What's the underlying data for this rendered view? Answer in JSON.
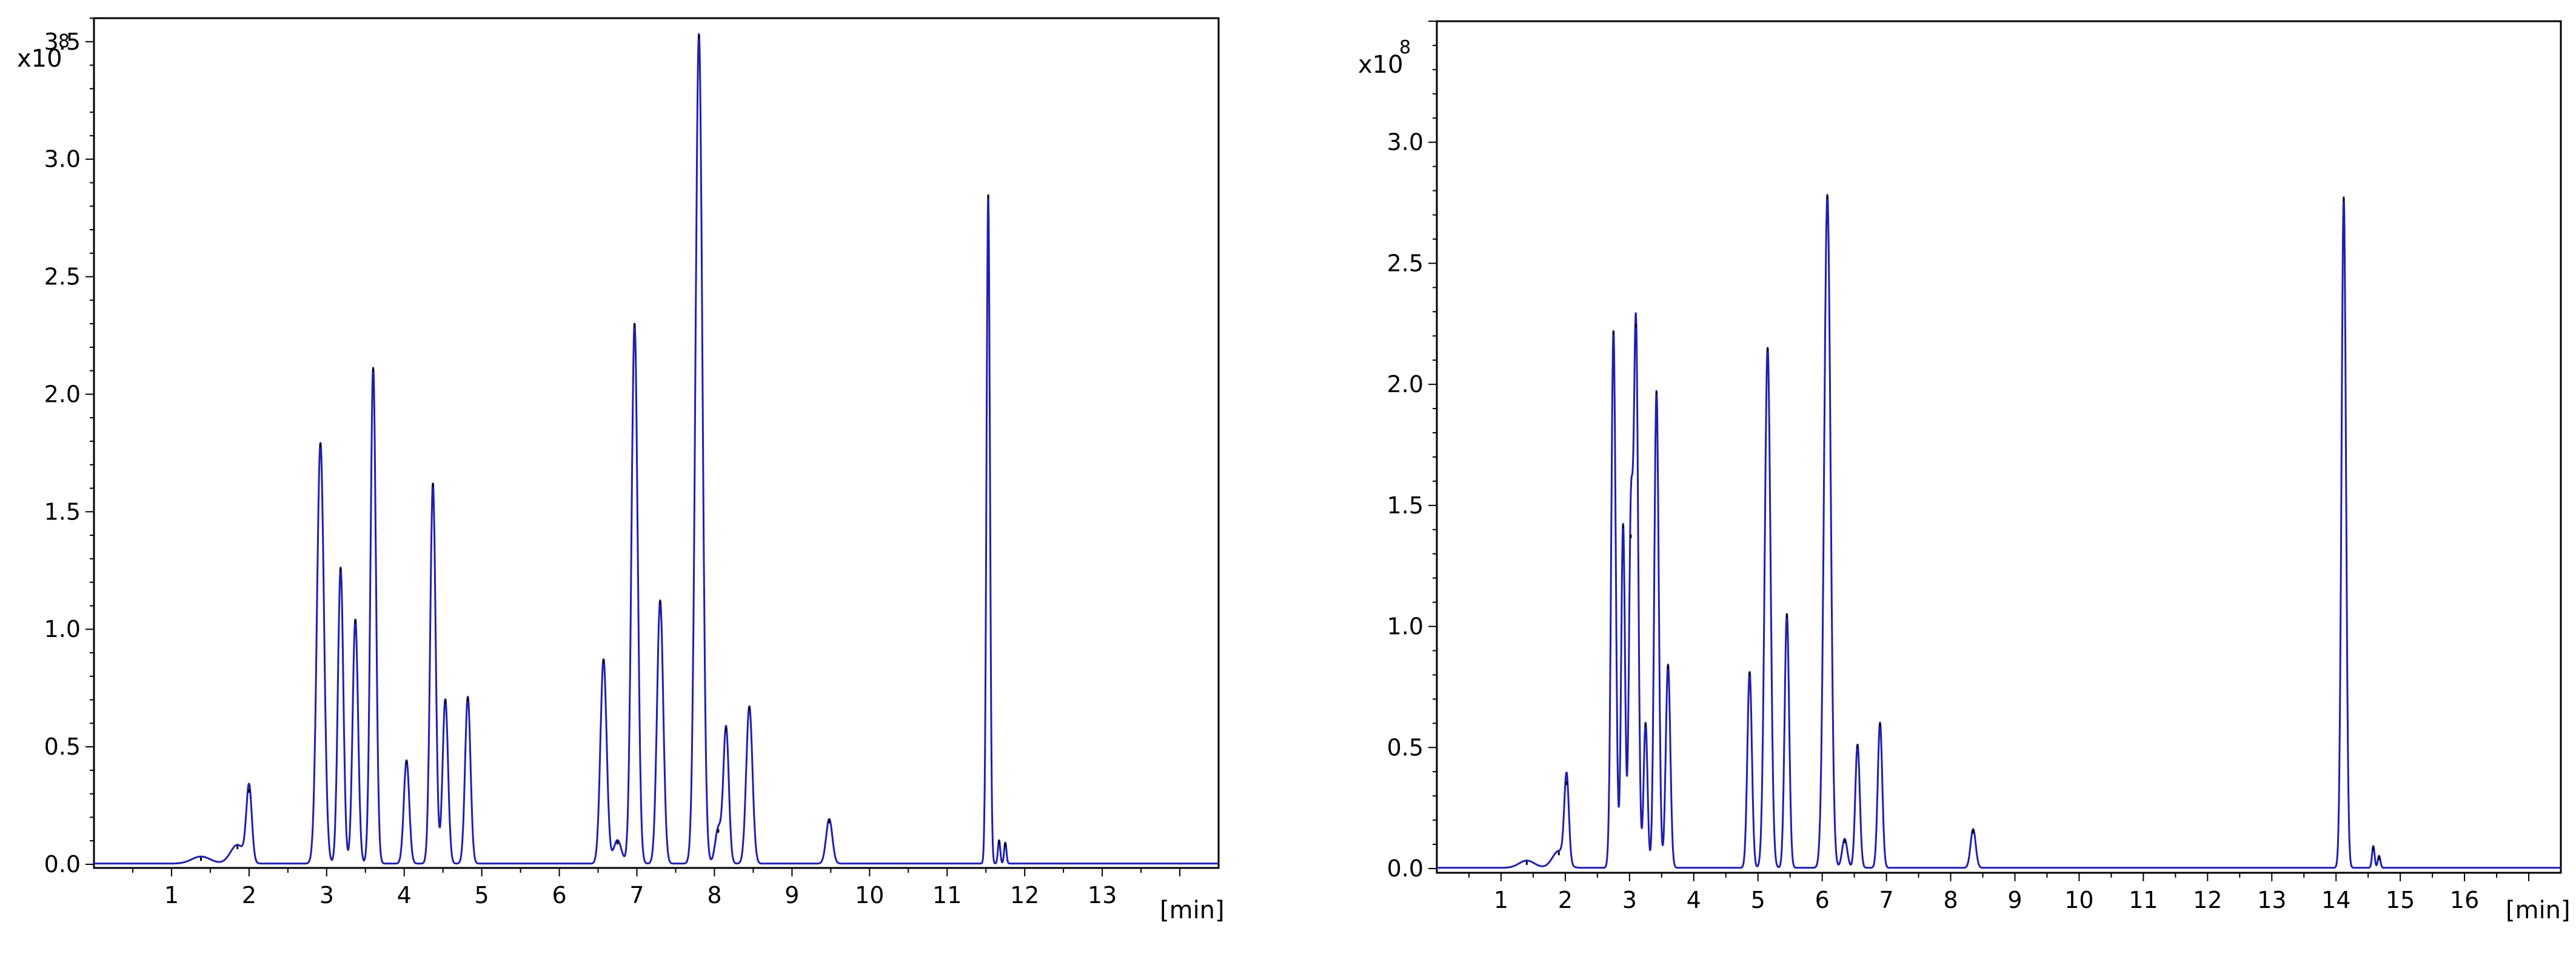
{
  "chart_data": [
    {
      "type": "line",
      "y_multiplier_label": "x10",
      "y_multiplier_exponent": "8",
      "x_unit_label": "[min]",
      "xlim": [
        0,
        14.5
      ],
      "ylim": [
        0,
        3.6
      ],
      "x_ticks": [
        "1",
        "2",
        "3",
        "4",
        "5",
        "6",
        "7",
        "8",
        "9",
        "10",
        "11",
        "12",
        "13"
      ],
      "y_ticks": [
        "0.0",
        "0.5",
        "1.0",
        "1.5",
        "2.0",
        "2.5",
        "3.0",
        "3.5"
      ],
      "line_color": "#1f1fb0",
      "grid": false,
      "series": [
        {
          "peaks": [
            {
              "x": 1.38,
              "h": 0.03,
              "w": 0.12
            },
            {
              "x": 1.85,
              "h": 0.08,
              "w": 0.09
            },
            {
              "x": 2.0,
              "h": 0.32,
              "w": 0.035
            },
            {
              "x": 2.92,
              "h": 1.79,
              "w": 0.045
            },
            {
              "x": 3.18,
              "h": 1.26,
              "w": 0.035
            },
            {
              "x": 3.37,
              "h": 1.04,
              "w": 0.035
            },
            {
              "x": 3.6,
              "h": 2.11,
              "w": 0.035
            },
            {
              "x": 4.03,
              "h": 0.44,
              "w": 0.035
            },
            {
              "x": 4.37,
              "h": 1.62,
              "w": 0.035
            },
            {
              "x": 4.53,
              "h": 0.7,
              "w": 0.035
            },
            {
              "x": 4.82,
              "h": 0.71,
              "w": 0.035
            },
            {
              "x": 6.57,
              "h": 0.87,
              "w": 0.04
            },
            {
              "x": 6.75,
              "h": 0.1,
              "w": 0.05
            },
            {
              "x": 6.97,
              "h": 2.3,
              "w": 0.04
            },
            {
              "x": 7.3,
              "h": 1.12,
              "w": 0.04
            },
            {
              "x": 7.8,
              "h": 3.53,
              "w": 0.045
            },
            {
              "x": 8.05,
              "h": 0.15,
              "w": 0.04
            },
            {
              "x": 8.15,
              "h": 0.58,
              "w": 0.035
            },
            {
              "x": 8.45,
              "h": 0.67,
              "w": 0.04
            },
            {
              "x": 9.48,
              "h": 0.19,
              "w": 0.04
            },
            {
              "x": 11.53,
              "h": 2.85,
              "w": 0.022
            },
            {
              "x": 11.67,
              "h": 0.1,
              "w": 0.015
            },
            {
              "x": 11.75,
              "h": 0.09,
              "w": 0.015
            }
          ]
        }
      ]
    },
    {
      "type": "line",
      "y_multiplier_label": "x10",
      "y_multiplier_exponent": "8",
      "x_unit_label": "[min]",
      "xlim": [
        0,
        17.5
      ],
      "ylim": [
        0,
        3.5
      ],
      "x_ticks": [
        "1",
        "2",
        "3",
        "4",
        "5",
        "6",
        "7",
        "8",
        "9",
        "10",
        "11",
        "12",
        "13",
        "14",
        "15",
        "16"
      ],
      "y_ticks": [
        "0.0",
        "0.5",
        "1.0",
        "1.5",
        "2.0",
        "2.5",
        "3.0"
      ],
      "line_color": "#1f1fb0",
      "grid": false,
      "series": [
        {
          "peaks": [
            {
              "x": 1.4,
              "h": 0.03,
              "w": 0.12
            },
            {
              "x": 1.9,
              "h": 0.07,
              "w": 0.1
            },
            {
              "x": 2.02,
              "h": 0.36,
              "w": 0.035
            },
            {
              "x": 2.75,
              "h": 2.22,
              "w": 0.035
            },
            {
              "x": 2.9,
              "h": 1.42,
              "w": 0.03
            },
            {
              "x": 3.02,
              "h": 1.38,
              "w": 0.03
            },
            {
              "x": 3.1,
              "h": 2.25,
              "w": 0.035
            },
            {
              "x": 3.25,
              "h": 0.6,
              "w": 0.03
            },
            {
              "x": 3.42,
              "h": 1.97,
              "w": 0.035
            },
            {
              "x": 3.6,
              "h": 0.84,
              "w": 0.035
            },
            {
              "x": 4.87,
              "h": 0.81,
              "w": 0.035
            },
            {
              "x": 5.15,
              "h": 2.15,
              "w": 0.045
            },
            {
              "x": 5.45,
              "h": 1.05,
              "w": 0.035
            },
            {
              "x": 6.08,
              "h": 2.78,
              "w": 0.05
            },
            {
              "x": 6.35,
              "h": 0.12,
              "w": 0.04
            },
            {
              "x": 6.55,
              "h": 0.51,
              "w": 0.035
            },
            {
              "x": 6.9,
              "h": 0.6,
              "w": 0.035
            },
            {
              "x": 8.35,
              "h": 0.16,
              "w": 0.04
            },
            {
              "x": 14.12,
              "h": 2.77,
              "w": 0.035
            },
            {
              "x": 14.58,
              "h": 0.09,
              "w": 0.02
            },
            {
              "x": 14.67,
              "h": 0.05,
              "w": 0.02
            }
          ]
        }
      ]
    }
  ]
}
